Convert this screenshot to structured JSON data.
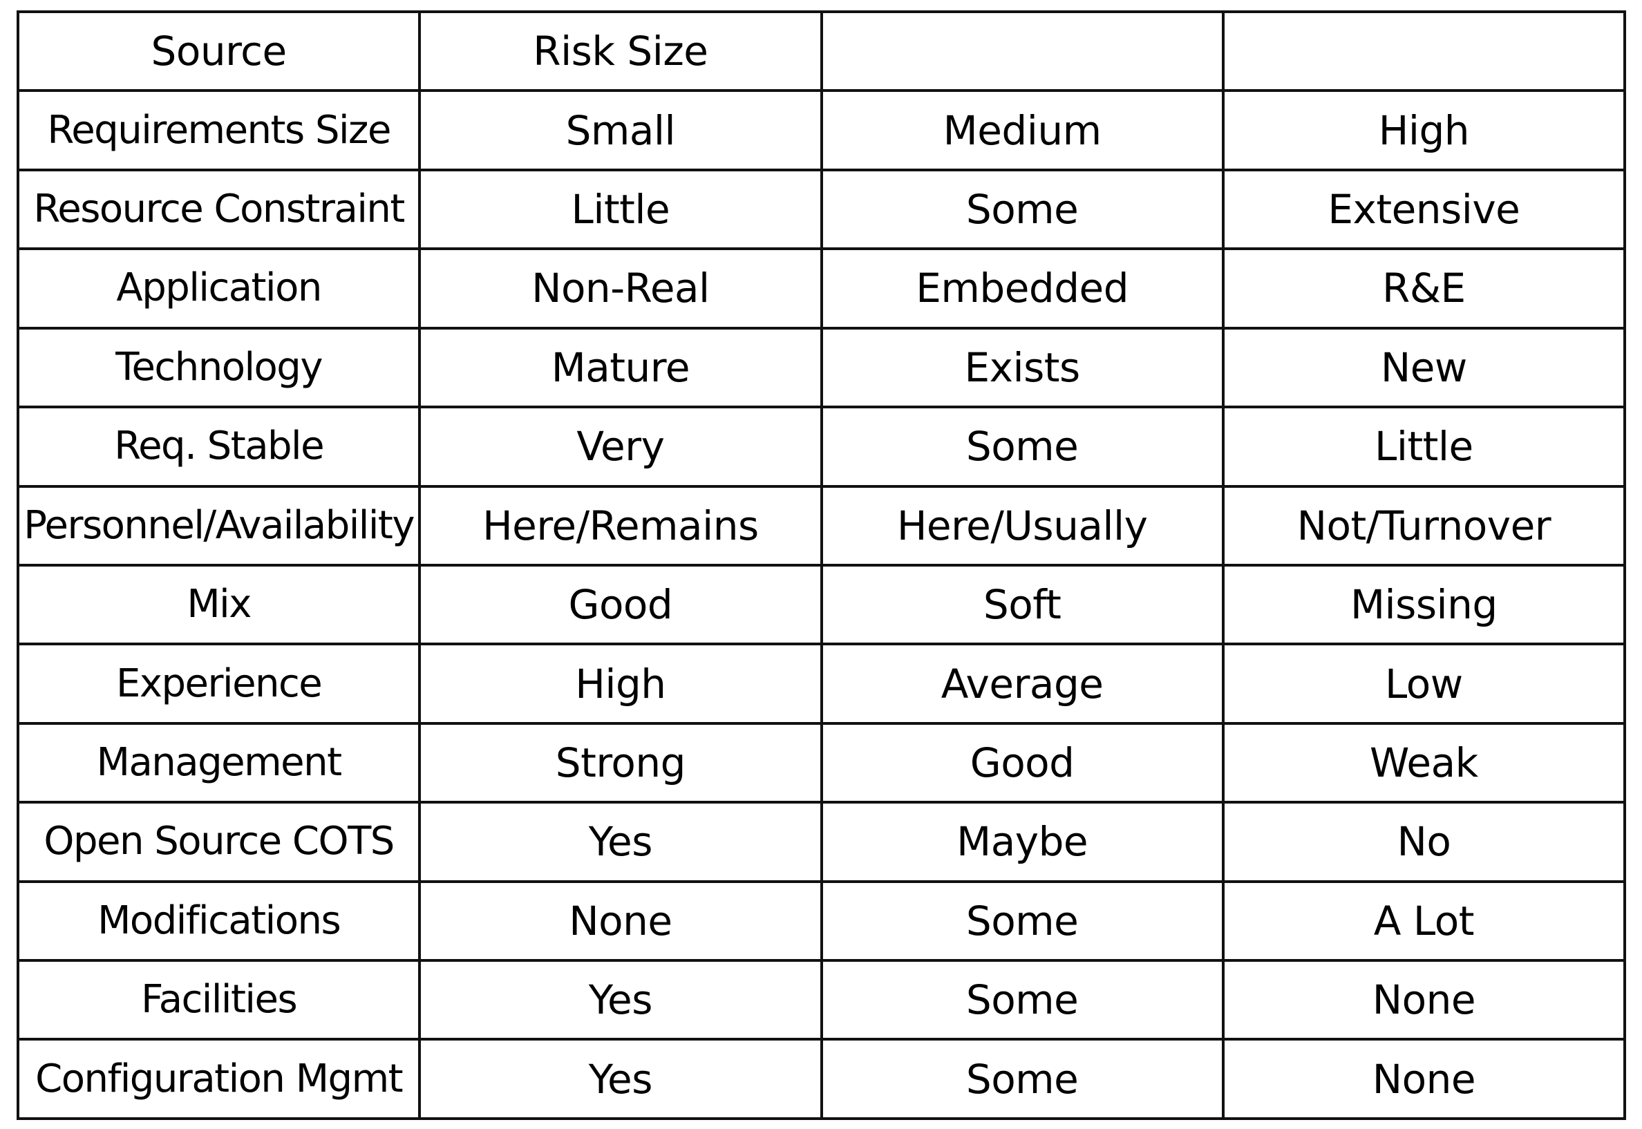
{
  "header": {
    "cells": [
      "Source",
      "Risk Size",
      "",
      ""
    ]
  },
  "rows": [
    {
      "source": "Requirements Size",
      "levels": [
        "Small",
        "Medium",
        "High"
      ]
    },
    {
      "source": "Resource Constraint",
      "levels": [
        "Little",
        "Some",
        "Extensive"
      ]
    },
    {
      "source": "Application",
      "levels": [
        "Non-Real",
        "Embedded",
        "R&E"
      ]
    },
    {
      "source": "Technology",
      "levels": [
        "Mature",
        "Exists",
        "New"
      ]
    },
    {
      "source": "Req. Stable",
      "levels": [
        "Very",
        "Some",
        "Little"
      ]
    },
    {
      "source": "Personnel/Availability",
      "levels": [
        "Here/Remains",
        "Here/Usually",
        "Not/Turnover"
      ]
    },
    {
      "source": "Mix",
      "levels": [
        "Good",
        "Soft",
        "Missing"
      ]
    },
    {
      "source": "Experience",
      "levels": [
        "High",
        "Average",
        "Low"
      ]
    },
    {
      "source": "Management",
      "levels": [
        "Strong",
        "Good",
        "Weak"
      ]
    },
    {
      "source": "Open Source COTS",
      "levels": [
        "Yes",
        "Maybe",
        "No"
      ]
    },
    {
      "source": "Modifications",
      "levels": [
        "None",
        "Some",
        "A Lot"
      ]
    },
    {
      "source": "Facilities",
      "levels": [
        "Yes",
        "Some",
        "None"
      ]
    },
    {
      "source": "Configuration Mgmt",
      "levels": [
        "Yes",
        "Some",
        "None"
      ]
    }
  ]
}
